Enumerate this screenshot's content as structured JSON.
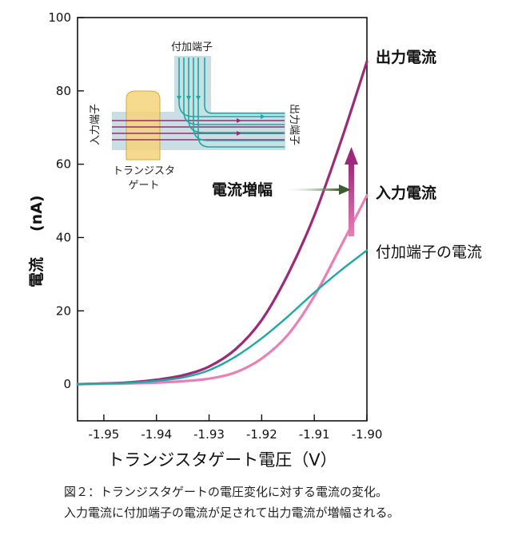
{
  "chart_data": {
    "type": "line",
    "xlabel": "トランジスタゲート電圧（V）",
    "ylabel_main": "電流",
    "ylabel_unit": "(nA)",
    "xlim": [
      -1.955,
      -1.9
    ],
    "ylim": [
      -10,
      100
    ],
    "xticks": [
      -1.95,
      -1.94,
      -1.93,
      -1.92,
      -1.91,
      -1.9
    ],
    "xtick_labels": [
      "-1.95",
      "-1.94",
      "-1.93",
      "-1.92",
      "-1.91",
      "-1.90"
    ],
    "yticks": [
      0,
      20,
      40,
      60,
      80,
      100
    ],
    "ytick_labels": [
      "0",
      "20",
      "40",
      "60",
      "80",
      "100"
    ],
    "series": [
      {
        "name": "出力電流",
        "color": "#9c2a78",
        "bold": true,
        "x": [
          -1.955,
          -1.95,
          -1.945,
          -1.94,
          -1.935,
          -1.93,
          -1.925,
          -1.92,
          -1.915,
          -1.91,
          -1.905,
          -1.9
        ],
        "y": [
          0,
          0.2,
          0.5,
          1.2,
          2.4,
          4.8,
          9.5,
          17.5,
          30,
          46,
          66,
          88
        ]
      },
      {
        "name": "入力電流",
        "color": "#e97fb5",
        "bold": true,
        "x": [
          -1.955,
          -1.95,
          -1.945,
          -1.94,
          -1.935,
          -1.93,
          -1.925,
          -1.92,
          -1.915,
          -1.91,
          -1.905,
          -1.9
        ],
        "y": [
          0,
          0.1,
          0.2,
          0.4,
          0.8,
          1.5,
          3.2,
          7,
          13.5,
          24,
          37.5,
          51.5
        ]
      },
      {
        "name": "付加端子の電流",
        "color": "#1fa8a4",
        "bold": false,
        "x": [
          -1.955,
          -1.95,
          -1.945,
          -1.94,
          -1.935,
          -1.93,
          -1.925,
          -1.92,
          -1.915,
          -1.91,
          -1.905,
          -1.9
        ],
        "y": [
          0,
          0.2,
          0.4,
          0.9,
          1.8,
          3.8,
          7.5,
          12.5,
          18.5,
          25,
          31,
          36.5
        ]
      }
    ],
    "annotation": {
      "label": "電流増幅"
    },
    "inset": {
      "top_label": "付加端子",
      "left_label": "入力端子",
      "right_label": "出力端子",
      "gate_label_line1": "トランジスタ",
      "gate_label_line2": "ゲート"
    }
  },
  "colors": {
    "output": "#9c2a78",
    "input": "#e97fb5",
    "extra": "#1fa8a4",
    "gate": "#f4d37a",
    "channel": "#c9dfe3",
    "arrow_dark": "#3f5a30"
  },
  "caption": {
    "line1": "図２：トランジスタゲートの電圧変化に対する電流の変化。",
    "line2": "入力電流に付加端子の電流が足されて出力電流が増幅される。"
  }
}
